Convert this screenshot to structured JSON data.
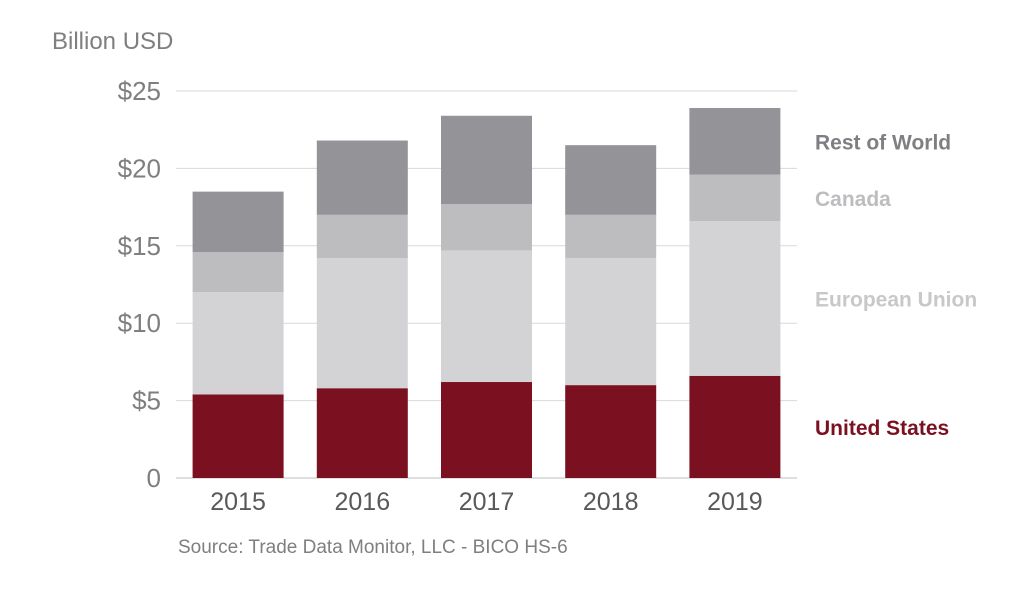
{
  "y_unit_label": "Billion USD",
  "source": "Source: Trade Data Monitor, LLC - BICO HS-6",
  "chart_data": {
    "type": "bar",
    "stacked": true,
    "categories": [
      "2015",
      "2016",
      "2017",
      "2018",
      "2019"
    ],
    "ylim": [
      0,
      25
    ],
    "yticks": [
      0,
      5,
      10,
      15,
      20,
      25
    ],
    "ytick_labels": [
      "0",
      "$5",
      "$10",
      "$15",
      "$20",
      "$25"
    ],
    "grid": true,
    "legend": "right, labels aligned to segments",
    "series": [
      {
        "name": "United States",
        "color": "#7b1120",
        "values": [
          5.4,
          5.8,
          6.2,
          6.0,
          6.6
        ]
      },
      {
        "name": "European Union",
        "color": "#d3d3d5",
        "values": [
          6.6,
          8.4,
          8.5,
          8.2,
          10.0
        ]
      },
      {
        "name": "Canada",
        "color": "#bdbdc0",
        "values": [
          2.6,
          2.8,
          3.0,
          2.8,
          3.0
        ]
      },
      {
        "name": "Rest of World",
        "color": "#939398",
        "values": [
          3.9,
          4.8,
          5.7,
          4.5,
          4.3
        ]
      }
    ]
  }
}
